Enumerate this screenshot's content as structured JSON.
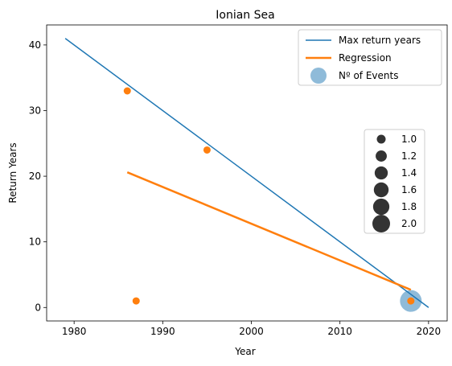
{
  "chart_data": {
    "type": "scatter",
    "title": "Ionian Sea",
    "xlabel": "Year",
    "ylabel": "Return Years",
    "xlim": [
      1976.9,
      2022.1
    ],
    "ylim": [
      -2.05,
      43.05
    ],
    "xticks": [
      1980,
      1990,
      2000,
      2010,
      2020
    ],
    "yticks": [
      0,
      10,
      20,
      30,
      40
    ],
    "grid": false,
    "series": [
      {
        "name": "Max return years",
        "kind": "line",
        "color": "#1f77b4",
        "x": [
          1979,
          2020
        ],
        "y": [
          41,
          0
        ]
      },
      {
        "name": "Regression",
        "kind": "line",
        "color": "#ff7f0e",
        "x": [
          1986,
          2018
        ],
        "y": [
          20.6,
          2.7
        ]
      },
      {
        "name": "Nº of Events",
        "kind": "bubble",
        "color": "#1f77b4",
        "alpha": 0.5,
        "x": [
          2018
        ],
        "y": [
          1
        ],
        "size": [
          2
        ]
      },
      {
        "kind": "scatter",
        "color": "#ff7f0e",
        "x": [
          1986,
          1987,
          1995,
          2018
        ],
        "y": [
          33,
          1,
          24,
          1
        ]
      }
    ],
    "legend": {
      "placement": "top-right",
      "entries": [
        "Max return years",
        "Regression",
        "Nº of Events"
      ]
    },
    "size_legend": {
      "placement": "center-right",
      "marker_color": "#333333",
      "values": [
        "1.0",
        "1.2",
        "1.4",
        "1.6",
        "1.8",
        "2.0"
      ]
    }
  }
}
